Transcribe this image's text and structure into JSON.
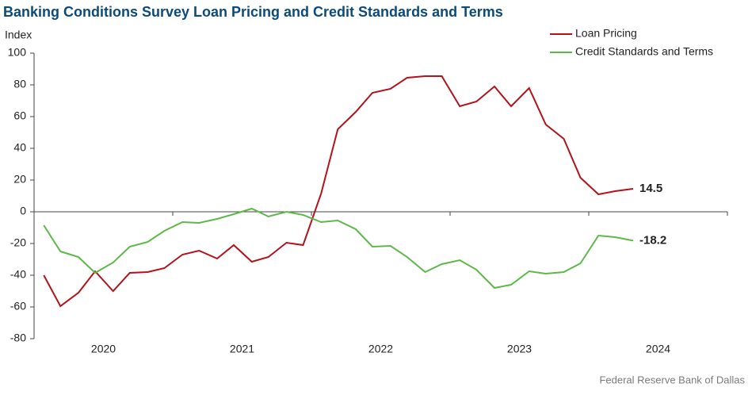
{
  "chart_data": {
    "type": "line",
    "title": "Banking Conditions Survey Loan Pricing and Credit Standards and Terms",
    "y_label": "Index",
    "source": "Federal Reserve Bank of Dallas",
    "x": [
      2020.07,
      2020.19,
      2020.32,
      2020.44,
      2020.57,
      2020.69,
      2020.82,
      2020.94,
      2021.07,
      2021.19,
      2021.32,
      2021.44,
      2021.57,
      2021.69,
      2021.82,
      2021.94,
      2022.07,
      2022.19,
      2022.32,
      2022.44,
      2022.57,
      2022.69,
      2022.82,
      2022.94,
      2023.07,
      2023.19,
      2023.32,
      2023.44,
      2023.57,
      2023.69,
      2023.82,
      2023.94,
      2024.07,
      2024.19,
      2024.32
    ],
    "series": [
      {
        "name": "Loan Pricing",
        "color": "#b3121b",
        "values": [
          -40,
          -59.5,
          -51,
          -37.5,
          -50,
          -38.5,
          -38,
          -35.5,
          -27,
          -24.5,
          -29.5,
          -21,
          -31.5,
          -28.5,
          -19.5,
          -21,
          11.5,
          52,
          63,
          75,
          77.5,
          84.5,
          85.5,
          85.5,
          66.5,
          69.5,
          79,
          66.5,
          78,
          55,
          46,
          21.5,
          11,
          13,
          14.5
        ]
      },
      {
        "name": "Credit Standards and Terms",
        "color": "#5cb947",
        "values": [
          -8.5,
          -25,
          -28.5,
          -38.5,
          -32,
          -22,
          -19,
          -12,
          -6.5,
          -7,
          -4.5,
          -1.5,
          2,
          -3,
          0,
          -2,
          -6.5,
          -5.5,
          -11,
          -22,
          -21.5,
          -28.5,
          -38,
          -33,
          -30.5,
          -36.5,
          -48,
          -46,
          -37.5,
          -39,
          -38,
          -32.5,
          -15,
          -16,
          -18.2
        ]
      }
    ],
    "xlim": [
      2020,
      2025
    ],
    "xticks": [
      2020,
      2021,
      2022,
      2023,
      2024,
      2025
    ],
    "year_labels": [
      {
        "value": 2020.5,
        "label": "2020"
      },
      {
        "value": 2021.5,
        "label": "2021"
      },
      {
        "value": 2022.5,
        "label": "2022"
      },
      {
        "value": 2023.5,
        "label": "2023"
      },
      {
        "value": 2024.5,
        "label": "2024"
      }
    ],
    "ylim": [
      -80,
      100
    ],
    "yticks": [
      -80,
      -60,
      -40,
      -20,
      0,
      20,
      40,
      60,
      80,
      100
    ],
    "legend": "top-right"
  }
}
